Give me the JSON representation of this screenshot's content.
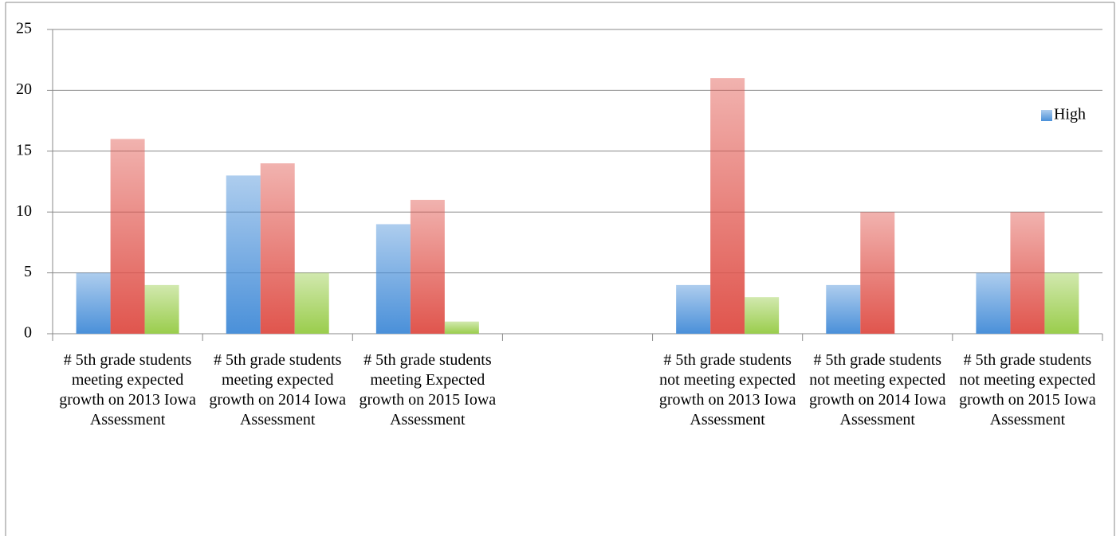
{
  "chart_data": {
    "type": "bar",
    "categories": [
      "# 5th grade students meeting expected growth on 2013 Iowa Assessment",
      "# 5th grade students meeting expected growth on 2014 Iowa Assessment",
      "# 5th grade students meeting Expected growth on 2015 Iowa Assessment",
      null,
      "# 5th grade students not meeting expected growth on 2013 Iowa Assessment",
      "# 5th grade students not meeting expected growth on 2014 Iowa Assessment",
      "# 5th grade students not meeting expected growth on 2015 Iowa Assessment"
    ],
    "series": [
      {
        "name": "High",
        "color": "#4a90d9",
        "values": [
          5,
          13,
          9,
          null,
          4,
          4,
          5
        ]
      },
      {
        "color": "#e0554d",
        "values": [
          16,
          14,
          11,
          null,
          21,
          10,
          10
        ]
      },
      {
        "color": "#9acd4c",
        "values": [
          4,
          5,
          1,
          null,
          3,
          0,
          5
        ]
      }
    ],
    "ylim": [
      0,
      25
    ],
    "yticks": [
      0,
      5,
      10,
      15,
      20,
      25
    ],
    "grid": true,
    "legend": "upper right"
  }
}
